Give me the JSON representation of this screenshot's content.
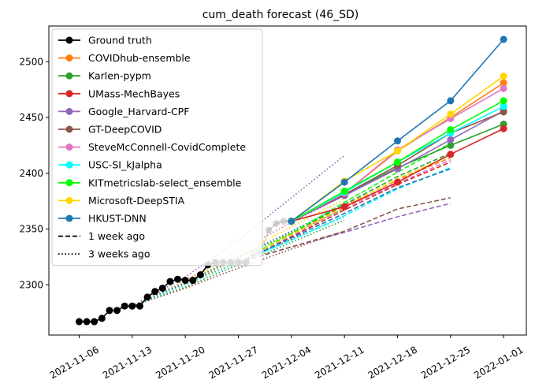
{
  "chart_data": {
    "type": "line",
    "title": "cum_death forecast (46_SD)",
    "xlabel": "",
    "ylabel": "",
    "x_ticks": [
      "2021-11-06",
      "2021-11-13",
      "2021-11-20",
      "2021-11-27",
      "2021-12-04",
      "2021-12-11",
      "2021-12-18",
      "2021-12-25",
      "2022-01-01"
    ],
    "y_ticks": [
      2300,
      2350,
      2400,
      2450,
      2500
    ],
    "xlim": [
      "2021-11-02",
      "2022-01-04"
    ],
    "ylim": [
      2255,
      2532
    ],
    "grid": false,
    "legend_position": "upper-left",
    "legend": [
      {
        "label": "Ground truth",
        "color": "#000000",
        "style": "solid",
        "marker": true
      },
      {
        "label": "COVIDhub-ensemble",
        "color": "#ff7f0e",
        "style": "solid",
        "marker": true
      },
      {
        "label": "Karlen-pypm",
        "color": "#2ca02c",
        "style": "solid",
        "marker": true
      },
      {
        "label": "UMass-MechBayes",
        "color": "#d62728",
        "style": "solid",
        "marker": true
      },
      {
        "label": "Google_Harvard-CPF",
        "color": "#9467bd",
        "style": "solid",
        "marker": true
      },
      {
        "label": "GT-DeepCOVID",
        "color": "#8c564b",
        "style": "solid",
        "marker": true
      },
      {
        "label": "SteveMcConnell-CovidComplete",
        "color": "#e377c2",
        "style": "solid",
        "marker": true
      },
      {
        "label": "USC-SI_kJalpha",
        "color": "#00ffff",
        "style": "solid",
        "marker": true
      },
      {
        "label": "KITmetricslab-select_ensemble",
        "color": "#00ff00",
        "style": "solid",
        "marker": true
      },
      {
        "label": "Microsoft-DeepSTIA",
        "color": "#ffd700",
        "style": "solid",
        "marker": true
      },
      {
        "label": "HKUST-DNN",
        "color": "#1f77b4",
        "style": "solid",
        "marker": true
      },
      {
        "label": "1 week ago",
        "color": "#000000",
        "style": "dashed",
        "marker": false
      },
      {
        "label": "3 weeks ago",
        "color": "#000000",
        "style": "dotted",
        "marker": false
      }
    ],
    "ground_truth": {
      "x": [
        "2021-11-06",
        "2021-11-07",
        "2021-11-08",
        "2021-11-09",
        "2021-11-10",
        "2021-11-11",
        "2021-11-12",
        "2021-11-13",
        "2021-11-14",
        "2021-11-15",
        "2021-11-16",
        "2021-11-17",
        "2021-11-18",
        "2021-11-19",
        "2021-11-20",
        "2021-11-21",
        "2021-11-22",
        "2021-11-23",
        "2021-11-24",
        "2021-11-25",
        "2021-11-26",
        "2021-11-27",
        "2021-11-28",
        "2021-11-29",
        "2021-11-30",
        "2021-12-01",
        "2021-12-02",
        "2021-12-03",
        "2021-12-04"
      ],
      "y": [
        2267,
        2267,
        2267,
        2270,
        2277,
        2277,
        2281,
        2281,
        2281,
        2289,
        2294,
        2297,
        2303,
        2305,
        2304,
        2304,
        2309,
        2318,
        2320,
        2320,
        2320,
        2320,
        2320,
        2328,
        2330,
        2349,
        2355,
        2357,
        2357
      ]
    },
    "gt_fade_from_index": 22,
    "forecasts": [
      {
        "name": "COVIDhub-ensemble",
        "color": "#ff7f0e",
        "x": [
          "2021-12-04",
          "2021-12-11",
          "2021-12-18",
          "2021-12-25",
          "2022-01-01"
        ],
        "y": [
          2357,
          2382,
          2420,
          2450,
          2481
        ]
      },
      {
        "name": "Karlen-pypm",
        "color": "#2ca02c",
        "x": [
          "2021-12-04",
          "2021-12-11",
          "2021-12-18",
          "2021-12-25",
          "2022-01-01"
        ],
        "y": [
          2357,
          2381,
          2405,
          2425,
          2444
        ]
      },
      {
        "name": "UMass-MechBayes",
        "color": "#d62728",
        "x": [
          "2021-12-04",
          "2021-12-11",
          "2021-12-18",
          "2021-12-25",
          "2022-01-01"
        ],
        "y": [
          2357,
          2370,
          2392,
          2417,
          2440
        ]
      },
      {
        "name": "Google_Harvard-CPF",
        "color": "#9467bd",
        "x": [
          "2021-12-04",
          "2021-12-11",
          "2021-12-18",
          "2021-12-25",
          "2022-01-01"
        ],
        "y": [
          2357,
          2380,
          2404,
          2430,
          2456
        ]
      },
      {
        "name": "GT-DeepCOVID",
        "color": "#8c564b",
        "x": [
          "2021-12-04",
          "2021-12-11",
          "2021-12-18",
          "2021-12-25",
          "2022-01-01"
        ],
        "y": [
          2357,
          2381,
          2407,
          2436,
          2455
        ]
      },
      {
        "name": "SteveMcConnell-CovidComplete",
        "color": "#e377c2",
        "x": [
          "2021-12-04",
          "2021-12-11",
          "2021-12-18",
          "2021-12-25",
          "2022-01-01"
        ],
        "y": [
          2357,
          2382,
          2421,
          2449,
          2476
        ]
      },
      {
        "name": "USC-SI_kJalpha",
        "color": "#00ffff",
        "x": [
          "2021-12-04",
          "2021-12-11",
          "2021-12-18",
          "2021-12-25",
          "2022-01-01"
        ],
        "y": [
          2357,
          2383,
          2410,
          2436,
          2460
        ]
      },
      {
        "name": "KITmetricslab-select_ensemble",
        "color": "#00ff00",
        "x": [
          "2021-12-04",
          "2021-12-11",
          "2021-12-18",
          "2021-12-25",
          "2022-01-01"
        ],
        "y": [
          2357,
          2384,
          2410,
          2439,
          2465
        ]
      },
      {
        "name": "Microsoft-DeepSTIA",
        "color": "#ffd700",
        "x": [
          "2021-12-04",
          "2021-12-11",
          "2021-12-18",
          "2021-12-25",
          "2022-01-01"
        ],
        "y": [
          2357,
          2393,
          2420,
          2453,
          2487
        ]
      },
      {
        "name": "HKUST-DNN",
        "color": "#1f77b4",
        "x": [
          "2021-12-04",
          "2021-12-11",
          "2021-12-18",
          "2021-12-25",
          "2022-01-01"
        ],
        "y": [
          2357,
          2392,
          2429,
          2465,
          2520
        ]
      }
    ],
    "one_week_ago": [
      {
        "name": "COVIDhub-ensemble",
        "color": "#ff7f0e",
        "x": [
          "2021-11-27",
          "2021-12-04",
          "2021-12-11",
          "2021-12-18",
          "2021-12-25"
        ],
        "y": [
          2320,
          2345,
          2371,
          2394,
          2414
        ]
      },
      {
        "name": "Karlen-pypm",
        "color": "#2ca02c",
        "x": [
          "2021-11-27",
          "2021-12-04",
          "2021-12-11",
          "2021-12-18",
          "2021-12-25"
        ],
        "y": [
          2320,
          2346,
          2372,
          2397,
          2418
        ]
      },
      {
        "name": "UMass-MechBayes",
        "color": "#d62728",
        "x": [
          "2021-11-27",
          "2021-12-04",
          "2021-12-11",
          "2021-12-18",
          "2021-12-25"
        ],
        "y": [
          2320,
          2343,
          2367,
          2390,
          2410
        ]
      },
      {
        "name": "Google_Harvard-CPF",
        "color": "#9467bd",
        "x": [
          "2021-11-27",
          "2021-12-04",
          "2021-12-11",
          "2021-12-18",
          "2021-12-25"
        ],
        "y": [
          2320,
          2334,
          2347,
          2361,
          2373
        ]
      },
      {
        "name": "GT-DeepCOVID",
        "color": "#8c564b",
        "x": [
          "2021-11-27",
          "2021-12-04",
          "2021-12-11",
          "2021-12-18",
          "2021-12-25"
        ],
        "y": [
          2320,
          2334,
          2348,
          2368,
          2378
        ]
      },
      {
        "name": "SteveMcConnell-CovidComplete",
        "color": "#e377c2",
        "x": [
          "2021-11-27",
          "2021-12-04",
          "2021-12-11",
          "2021-12-18",
          "2021-12-25"
        ],
        "y": [
          2320,
          2344,
          2369,
          2391,
          2412
        ]
      },
      {
        "name": "USC-SI_kJalpha",
        "color": "#00ffff",
        "x": [
          "2021-11-27",
          "2021-12-04",
          "2021-12-11",
          "2021-12-18",
          "2021-12-25"
        ],
        "y": [
          2320,
          2340,
          2362,
          2386,
          2405
        ]
      },
      {
        "name": "KITmetricslab-select_ensemble",
        "color": "#00ff00",
        "x": [
          "2021-11-27",
          "2021-12-04",
          "2021-12-11",
          "2021-12-18",
          "2021-12-25"
        ],
        "y": [
          2320,
          2346,
          2374,
          2401,
          2427
        ]
      },
      {
        "name": "Microsoft-DeepSTIA",
        "color": "#ffd700",
        "x": [
          "2021-11-27",
          "2021-12-04",
          "2021-12-11",
          "2021-12-18",
          "2021-12-25"
        ],
        "y": [
          2320,
          2345,
          2370,
          2395,
          2416
        ]
      },
      {
        "name": "HKUST-DNN",
        "color": "#1f77b4",
        "x": [
          "2021-11-27",
          "2021-12-04",
          "2021-12-11",
          "2021-12-18",
          "2021-12-25"
        ],
        "y": [
          2320,
          2342,
          2364,
          2387,
          2404
        ]
      }
    ],
    "three_weeks_ago": [
      {
        "name": "COVIDhub-ensemble",
        "color": "#ff7f0e",
        "x": [
          "2021-11-13",
          "2021-11-20",
          "2021-11-27",
          "2021-12-04",
          "2021-12-11"
        ],
        "y": [
          2281,
          2300,
          2324,
          2347,
          2368
        ]
      },
      {
        "name": "Karlen-pypm",
        "color": "#2ca02c",
        "x": [
          "2021-11-13",
          "2021-11-20",
          "2021-11-27",
          "2021-12-04",
          "2021-12-11"
        ],
        "y": [
          2281,
          2298,
          2318,
          2338,
          2358
        ]
      },
      {
        "name": "UMass-MechBayes",
        "color": "#d62728",
        "x": [
          "2021-11-13",
          "2021-11-20",
          "2021-11-27",
          "2021-12-04",
          "2021-12-11"
        ],
        "y": [
          2281,
          2301,
          2320,
          2341,
          2361
        ]
      },
      {
        "name": "Google_Harvard-CPF",
        "color": "#9467bd",
        "x": [
          "2021-11-13",
          "2021-11-20",
          "2021-11-27",
          "2021-12-04",
          "2021-12-11"
        ],
        "y": [
          2281,
          2307,
          2340,
          2378,
          2416
        ]
      },
      {
        "name": "GT-DeepCOVID",
        "color": "#8c564b",
        "x": [
          "2021-11-13",
          "2021-11-20",
          "2021-11-27",
          "2021-12-04",
          "2021-12-11"
        ],
        "y": [
          2281,
          2297,
          2315,
          2332,
          2348
        ]
      },
      {
        "name": "SteveMcConnell-CovidComplete",
        "color": "#e377c2",
        "x": [
          "2021-11-13",
          "2021-11-20",
          "2021-11-27",
          "2021-12-04",
          "2021-12-11"
        ],
        "y": [
          2281,
          2304,
          2330,
          2356,
          2380
        ]
      },
      {
        "name": "USC-SI_kJalpha",
        "color": "#00ffff",
        "x": [
          "2021-11-13",
          "2021-11-20",
          "2021-11-27",
          "2021-12-04",
          "2021-12-11"
        ],
        "y": [
          2281,
          2300,
          2320,
          2340,
          2361
        ]
      },
      {
        "name": "KITmetricslab-select_ensemble",
        "color": "#00ff00",
        "x": [
          "2021-11-13",
          "2021-11-20",
          "2021-11-27",
          "2021-12-04",
          "2021-12-11"
        ],
        "y": [
          2281,
          2302,
          2324,
          2346,
          2368
        ]
      },
      {
        "name": "Microsoft-DeepSTIA",
        "color": "#ffd700",
        "x": [
          "2021-11-13",
          "2021-11-20",
          "2021-11-27",
          "2021-12-04",
          "2021-12-11"
        ],
        "y": [
          2281,
          2303,
          2327,
          2352,
          2377
        ]
      },
      {
        "name": "HKUST-DNN",
        "color": "#1f77b4",
        "x": [
          "2021-11-13",
          "2021-11-20",
          "2021-11-27",
          "2021-12-04",
          "2021-12-11"
        ],
        "y": [
          2281,
          2302,
          2325,
          2348,
          2372
        ]
      }
    ]
  }
}
